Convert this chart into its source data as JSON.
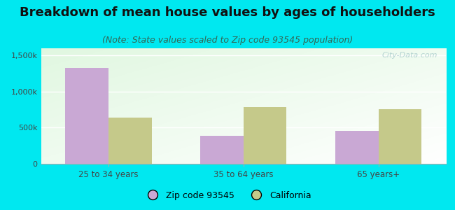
{
  "title": "Breakdown of mean house values by ages of householders",
  "subtitle": "(Note: State values scaled to Zip code 93545 population)",
  "categories": [
    "25 to 34 years",
    "35 to 64 years",
    "65 years+"
  ],
  "zip_values": [
    1330000,
    390000,
    460000
  ],
  "ca_values": [
    640000,
    790000,
    760000
  ],
  "ylim": [
    0,
    1600000
  ],
  "yticks": [
    0,
    500000,
    1000000,
    1500000
  ],
  "ytick_labels": [
    "0",
    "500k",
    "1,000k",
    "1,500k"
  ],
  "zip_color": "#c9a8d4",
  "ca_color": "#c5c98a",
  "background_outer": "#00e8f0",
  "legend_zip_label": "Zip code 93545",
  "legend_ca_label": "California",
  "bar_width": 0.32,
  "title_fontsize": 13,
  "subtitle_fontsize": 9,
  "watermark": "City-Data.com"
}
